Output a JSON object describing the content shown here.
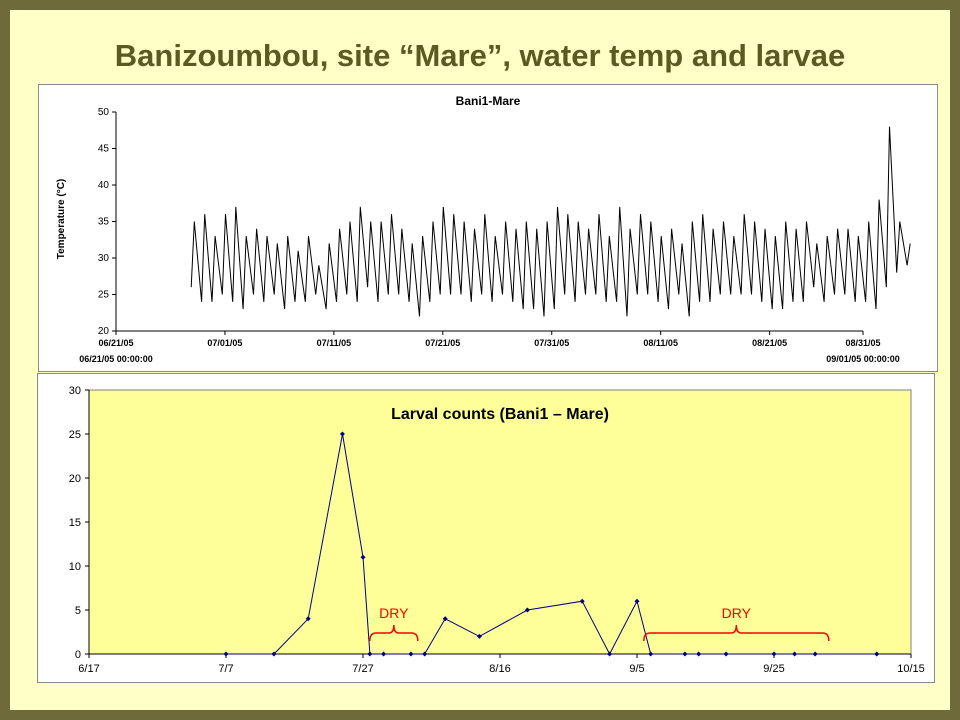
{
  "slide": {
    "title": "Banizoumbou, site “Mare”, water temp and larvae",
    "background_color": "#ffffc8",
    "border_color": "#6e6a3a",
    "title_color": "#5c5a24"
  },
  "chart_data": [
    {
      "type": "line",
      "title": "Bani1-Mare",
      "xlabel": "",
      "ylabel": "Temperature (°C)",
      "ylim": [
        20,
        50
      ],
      "yticks": [
        20,
        25,
        30,
        35,
        40,
        45,
        50
      ],
      "xticks": [
        "06/21/05",
        "07/01/05",
        "07/11/05",
        "07/21/05",
        "07/31/05",
        "08/11/05",
        "08/21/05",
        "08/31/05"
      ],
      "x_start_label": "06/21/05 00:00:00",
      "x_end_label": "09/01/05 00:00:00",
      "line_color": "#000000",
      "series": [
        {
          "x_unit": "day_after_06/21/05",
          "daily_min": [
            [
              7,
              26
            ],
            [
              8,
              24
            ],
            [
              9,
              24
            ],
            [
              10,
              25
            ],
            [
              11,
              24
            ],
            [
              12,
              23
            ],
            [
              13,
              25
            ],
            [
              14,
              24
            ],
            [
              15,
              25
            ],
            [
              16,
              23
            ],
            [
              17,
              24
            ],
            [
              18,
              24
            ],
            [
              19,
              25
            ],
            [
              20,
              23
            ],
            [
              21,
              24
            ],
            [
              22,
              25
            ],
            [
              23,
              24
            ],
            [
              24,
              26
            ],
            [
              25,
              24
            ],
            [
              26,
              25
            ],
            [
              27,
              25
            ],
            [
              28,
              24
            ],
            [
              29,
              22
            ],
            [
              30,
              24
            ],
            [
              31,
              25
            ],
            [
              32,
              25
            ],
            [
              33,
              25
            ],
            [
              34,
              24
            ],
            [
              35,
              25
            ],
            [
              36,
              24
            ],
            [
              37,
              25
            ],
            [
              38,
              24
            ],
            [
              39,
              23
            ],
            [
              40,
              23
            ],
            [
              41,
              22
            ],
            [
              42,
              23
            ],
            [
              43,
              25
            ],
            [
              44,
              24
            ],
            [
              45,
              25
            ],
            [
              46,
              25
            ],
            [
              47,
              24
            ],
            [
              48,
              24
            ],
            [
              49,
              22
            ],
            [
              50,
              25
            ],
            [
              51,
              25
            ],
            [
              52,
              24
            ],
            [
              53,
              23
            ],
            [
              54,
              25
            ],
            [
              55,
              22
            ],
            [
              56,
              24
            ],
            [
              57,
              24
            ],
            [
              58,
              25
            ],
            [
              59,
              25
            ],
            [
              60,
              25
            ],
            [
              61,
              25
            ],
            [
              62,
              24
            ],
            [
              63,
              23
            ],
            [
              64,
              23
            ],
            [
              65,
              24
            ],
            [
              66,
              24
            ],
            [
              67,
              26
            ],
            [
              68,
              24
            ],
            [
              69,
              25
            ],
            [
              70,
              25
            ],
            [
              71,
              24
            ],
            [
              72,
              24
            ],
            [
              73,
              23
            ],
            [
              74,
              26
            ],
            [
              75,
              28
            ],
            [
              76,
              29
            ]
          ],
          "daily_max": [
            [
              7,
              35
            ],
            [
              8,
              36
            ],
            [
              9,
              33
            ],
            [
              10,
              36
            ],
            [
              11,
              37
            ],
            [
              12,
              33
            ],
            [
              13,
              34
            ],
            [
              14,
              33
            ],
            [
              15,
              32
            ],
            [
              16,
              33
            ],
            [
              17,
              31
            ],
            [
              18,
              33
            ],
            [
              19,
              29
            ],
            [
              20,
              32
            ],
            [
              21,
              34
            ],
            [
              22,
              35
            ],
            [
              23,
              37
            ],
            [
              24,
              35
            ],
            [
              25,
              35
            ],
            [
              26,
              36
            ],
            [
              27,
              34
            ],
            [
              28,
              32
            ],
            [
              29,
              33
            ],
            [
              30,
              35
            ],
            [
              31,
              37
            ],
            [
              32,
              36
            ],
            [
              33,
              35
            ],
            [
              34,
              34
            ],
            [
              35,
              36
            ],
            [
              36,
              33
            ],
            [
              37,
              35
            ],
            [
              38,
              34
            ],
            [
              39,
              35
            ],
            [
              40,
              34
            ],
            [
              41,
              35
            ],
            [
              42,
              37
            ],
            [
              43,
              36
            ],
            [
              44,
              35
            ],
            [
              45,
              34
            ],
            [
              46,
              36
            ],
            [
              47,
              33
            ],
            [
              48,
              37
            ],
            [
              49,
              34
            ],
            [
              50,
              36
            ],
            [
              51,
              35
            ],
            [
              52,
              33
            ],
            [
              53,
              34
            ],
            [
              54,
              32
            ],
            [
              55,
              35
            ],
            [
              56,
              36
            ],
            [
              57,
              34
            ],
            [
              58,
              35
            ],
            [
              59,
              33
            ],
            [
              60,
              36
            ],
            [
              61,
              35
            ],
            [
              62,
              34
            ],
            [
              63,
              33
            ],
            [
              64,
              35
            ],
            [
              65,
              34
            ],
            [
              66,
              35
            ],
            [
              67,
              32
            ],
            [
              68,
              33
            ],
            [
              69,
              34
            ],
            [
              70,
              34
            ],
            [
              71,
              33
            ],
            [
              72,
              35
            ],
            [
              73,
              38
            ],
            [
              74,
              48
            ],
            [
              75,
              35
            ],
            [
              76,
              32
            ]
          ]
        }
      ]
    },
    {
      "type": "line",
      "title": "Larval counts (Bani1 – Mare)",
      "xlabel": "",
      "ylabel": "",
      "ylim": [
        0,
        30
      ],
      "yticks": [
        0,
        5,
        10,
        15,
        20,
        25,
        30
      ],
      "xticks": [
        "6/17",
        "7/7",
        "7/27",
        "8/16",
        "9/5",
        "9/25",
        "10/15"
      ],
      "x_unit": "days_after_6/17",
      "xlim": [
        0,
        120
      ],
      "plot_background": "#ffff99",
      "line_color": "#000080",
      "series": [
        {
          "x": [
            20,
            27,
            32,
            37,
            40,
            41,
            43,
            47,
            49,
            52,
            57,
            64,
            72,
            76,
            80,
            82,
            87,
            89,
            93,
            100,
            103,
            106,
            115
          ],
          "values": [
            0,
            0,
            4,
            25,
            11,
            0,
            0,
            0,
            0,
            4,
            2,
            5,
            6,
            0,
            6,
            0,
            0,
            0,
            0,
            0,
            0,
            0,
            0
          ]
        }
      ],
      "annotations": [
        {
          "text": "DRY",
          "color": "#ff0000",
          "x_from": 41,
          "x_to": 48
        },
        {
          "text": "DRY",
          "color": "#ff0000",
          "x_from": 81,
          "x_to": 108
        }
      ]
    }
  ]
}
